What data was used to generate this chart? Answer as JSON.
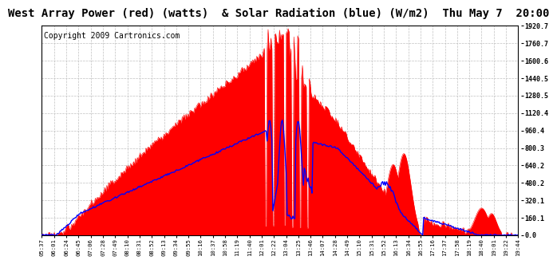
{
  "title": "West Array Power (red) (watts)  & Solar Radiation (blue) (W/m2)  Thu May 7  20:00",
  "copyright": "Copyright 2009 Cartronics.com",
  "yticks": [
    0.0,
    160.1,
    320.1,
    480.2,
    640.2,
    800.3,
    960.4,
    1120.4,
    1280.5,
    1440.5,
    1600.6,
    1760.7,
    1920.7
  ],
  "xtick_labels": [
    "05:37",
    "06:01",
    "06:24",
    "06:45",
    "07:06",
    "07:28",
    "07:49",
    "08:10",
    "08:31",
    "08:52",
    "09:13",
    "09:34",
    "09:55",
    "10:16",
    "10:37",
    "10:58",
    "11:19",
    "11:40",
    "12:01",
    "12:22",
    "13:04",
    "13:25",
    "13:46",
    "14:07",
    "14:28",
    "14:49",
    "15:10",
    "15:31",
    "15:52",
    "16:13",
    "16:34",
    "16:55",
    "17:16",
    "17:37",
    "17:58",
    "18:19",
    "18:40",
    "19:01",
    "19:22",
    "19:44"
  ],
  "ylim": [
    0,
    1920.7
  ],
  "bg_color": "#ffffff",
  "red_color": "#ff0000",
  "blue_color": "#0000ff",
  "grid_color": "#c0c0c0",
  "title_fontsize": 10,
  "copyright_fontsize": 7
}
